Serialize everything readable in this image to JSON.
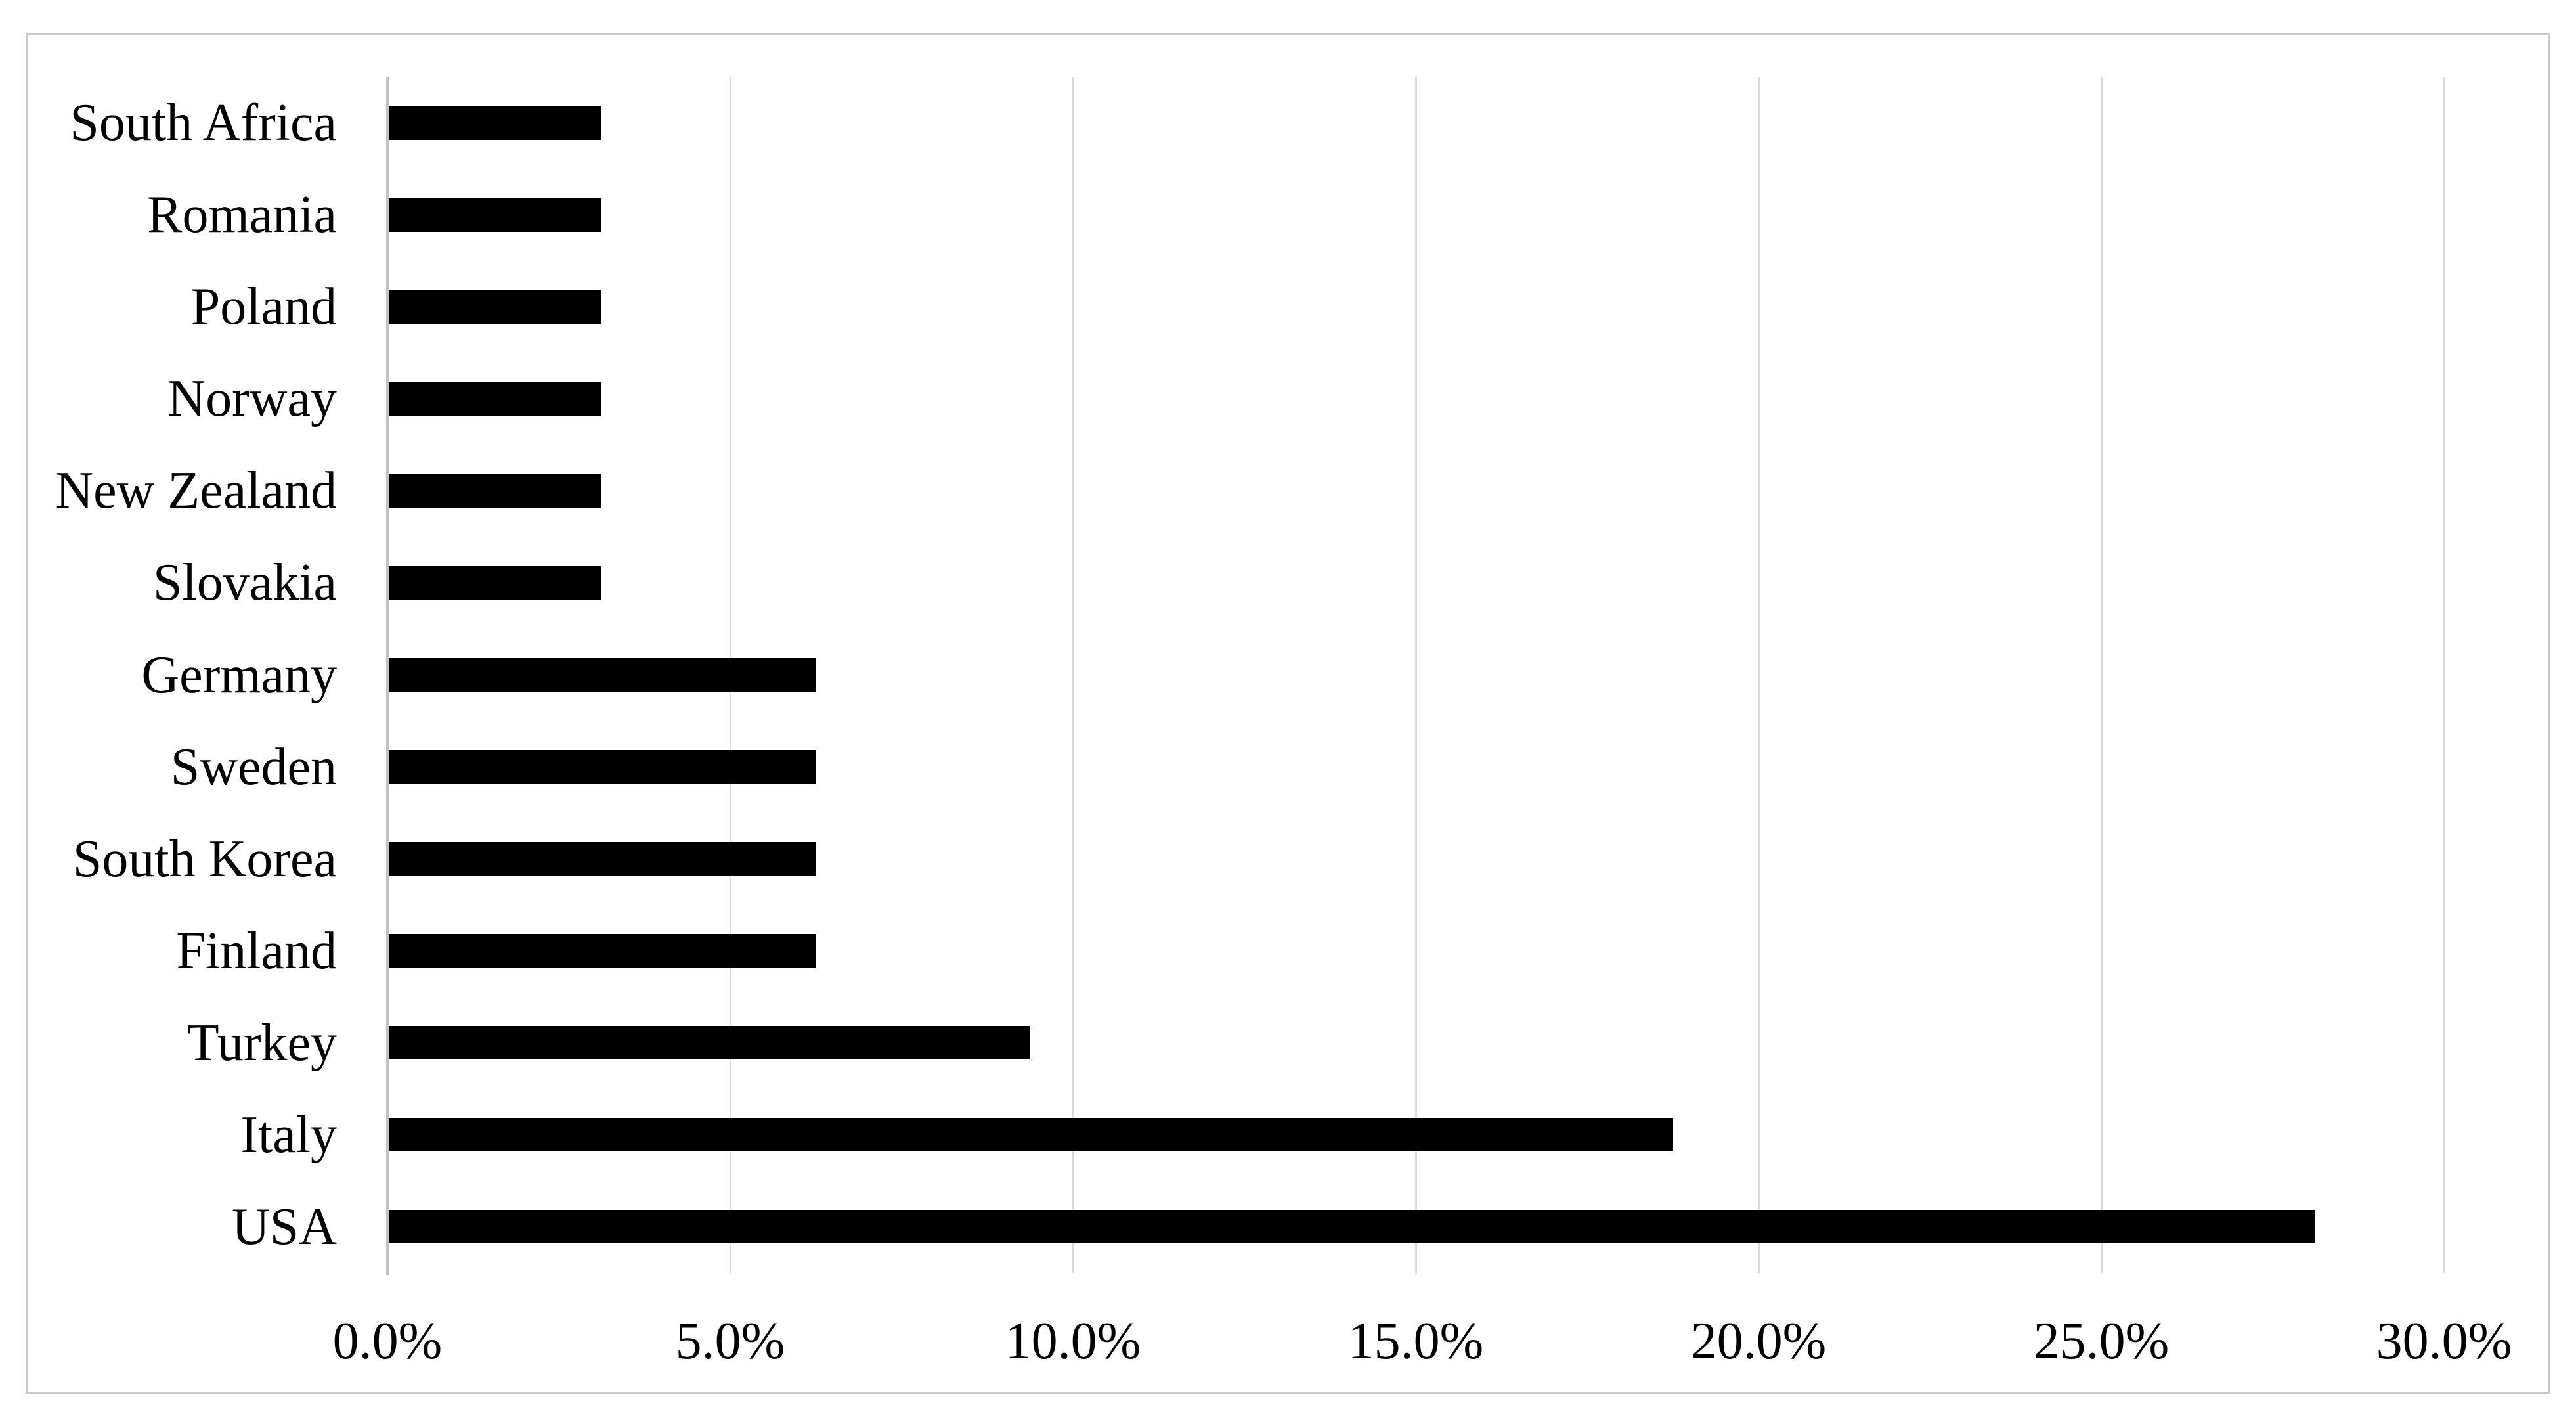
{
  "figure": {
    "background_color": "#ffffff",
    "frame_color": "#c9c9c9"
  },
  "chart_data": {
    "type": "bar",
    "orientation": "horizontal",
    "title": "",
    "xlabel": "",
    "ylabel": "",
    "categories": [
      "South Africa",
      "Romania",
      "Poland",
      "Norway",
      "New Zealand",
      "Slovakia",
      "Germany",
      "Sweden",
      "South Korea",
      "Finland",
      "Turkey",
      "Italy",
      "USA"
    ],
    "values_percent": [
      3.125,
      3.125,
      3.125,
      3.125,
      3.125,
      3.125,
      6.25,
      6.25,
      6.25,
      6.25,
      9.375,
      18.75,
      28.125
    ],
    "xlim": [
      0,
      30
    ],
    "x_tick_values": [
      0,
      5,
      10,
      15,
      20,
      25,
      30
    ],
    "x_tick_labels": [
      "0.0%",
      "5.0%",
      "10.0%",
      "15.0%",
      "20.0%",
      "25.0%",
      "30.0%"
    ],
    "grid": "vertical gridlines at 5% intervals",
    "legend": "none",
    "bar_color": "#000000",
    "gridline_color": "#dadada",
    "axis_line_color": "#c2c2c2",
    "label_color": "#000000"
  }
}
